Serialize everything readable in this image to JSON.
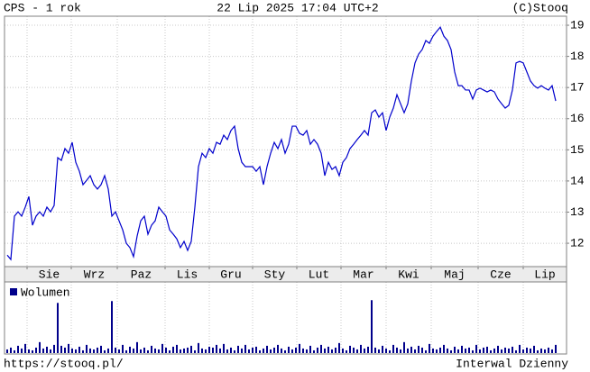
{
  "chart_data": {
    "type": "line",
    "title": "CPS - 1 rok",
    "subtitle": "22 Lip 2025 17:04 UTC+2",
    "source": "(C)Stooq",
    "url": "https://stooq.pl/",
    "interval": "Interwal Dzienny",
    "color": "#0000cc",
    "grid": true,
    "values": [
      11.62,
      11.48,
      12.87,
      13.01,
      12.87,
      13.16,
      13.5,
      12.58,
      12.87,
      13.01,
      12.87,
      13.16,
      13.01,
      13.21,
      14.75,
      14.66,
      15.04,
      14.89,
      15.24,
      14.6,
      14.31,
      13.88,
      14.02,
      14.17,
      13.88,
      13.74,
      13.88,
      14.17,
      13.74,
      12.87,
      13.01,
      12.72,
      12.43,
      12.0,
      11.86,
      11.57,
      12.23,
      12.72,
      12.87,
      12.29,
      12.58,
      12.72,
      13.16,
      13.01,
      12.87,
      12.43,
      12.29,
      12.14,
      11.86,
      12.06,
      11.77,
      12.06,
      13.16,
      14.46,
      14.89,
      14.75,
      15.04,
      14.89,
      15.24,
      15.18,
      15.47,
      15.33,
      15.62,
      15.76,
      15.04,
      14.6,
      14.46,
      14.46,
      14.46,
      14.31,
      14.46,
      13.88,
      14.46,
      14.89,
      15.24,
      15.04,
      15.33,
      14.89,
      15.18,
      15.76,
      15.76,
      15.53,
      15.47,
      15.62,
      15.18,
      15.33,
      15.18,
      14.89,
      14.17,
      14.6,
      14.37,
      14.46,
      14.17,
      14.6,
      14.75,
      15.04,
      15.18,
      15.33,
      15.47,
      15.62,
      15.47,
      16.19,
      16.28,
      16.05,
      16.19,
      15.62,
      16.05,
      16.34,
      16.77,
      16.48,
      16.19,
      16.48,
      17.21,
      17.79,
      18.07,
      18.22,
      18.51,
      18.42,
      18.65,
      18.8,
      18.94,
      18.65,
      18.51,
      18.22,
      17.5,
      17.06,
      17.06,
      16.92,
      16.92,
      16.63,
      16.92,
      16.98,
      16.92,
      16.86,
      16.92,
      16.86,
      16.63,
      16.48,
      16.34,
      16.43,
      16.92,
      17.79,
      17.84,
      17.79,
      17.5,
      17.21,
      17.06,
      16.98,
      17.06,
      16.98,
      16.92,
      17.06,
      16.57
    ],
    "xlim": [
      -0.75,
      155
    ],
    "xticks": [
      {
        "value": 5.5,
        "label": "Sie"
      },
      {
        "value": 17.75,
        "label": "Wrz"
      },
      {
        "value": 30.5,
        "label": "Paz"
      },
      {
        "value": 43.75,
        "label": "Lis"
      },
      {
        "value": 56,
        "label": "Gru"
      },
      {
        "value": 68,
        "label": "Sty"
      },
      {
        "value": 80.25,
        "label": "Lut"
      },
      {
        "value": 92.5,
        "label": "Mar"
      },
      {
        "value": 105,
        "label": "Kwi"
      },
      {
        "value": 117.5,
        "label": "Maj"
      },
      {
        "value": 130.5,
        "label": "Cze"
      },
      {
        "value": 143,
        "label": "Lip"
      }
    ],
    "ylim": [
      11.25,
      19.29
    ],
    "yticks": [
      12,
      13,
      14,
      15,
      16,
      17,
      18,
      19
    ],
    "volume": {
      "name": "Wolumen",
      "color": "#00008b",
      "ylim": [
        0,
        78
      ],
      "values": [
        4,
        6,
        3,
        8,
        5,
        10,
        4,
        3,
        6,
        12,
        5,
        7,
        4,
        9,
        55,
        8,
        6,
        10,
        5,
        4,
        7,
        3,
        9,
        5,
        4,
        6,
        8,
        3,
        5,
        57,
        6,
        4,
        9,
        3,
        7,
        5,
        12,
        4,
        6,
        3,
        8,
        5,
        4,
        10,
        6,
        3,
        7,
        9,
        4,
        5,
        6,
        8,
        3,
        11,
        5,
        4,
        7,
        6,
        9,
        5,
        10,
        4,
        6,
        3,
        8,
        5,
        9,
        4,
        6,
        7,
        3,
        5,
        8,
        4,
        6,
        9,
        5,
        3,
        7,
        4,
        6,
        10,
        5,
        4,
        8,
        3,
        6,
        9,
        5,
        7,
        4,
        6,
        11,
        5,
        3,
        8,
        6,
        4,
        9,
        5,
        7,
        58,
        6,
        4,
        8,
        5,
        3,
        9,
        6,
        4,
        12,
        5,
        7,
        4,
        8,
        6,
        3,
        10,
        5,
        4,
        6,
        9,
        5,
        3,
        7,
        4,
        8,
        5,
        6,
        3,
        9,
        4,
        6,
        7,
        3,
        5,
        8,
        4,
        6,
        5,
        7,
        3,
        9,
        4,
        6,
        5,
        8,
        3,
        5,
        4,
        6,
        4,
        9
      ]
    }
  }
}
